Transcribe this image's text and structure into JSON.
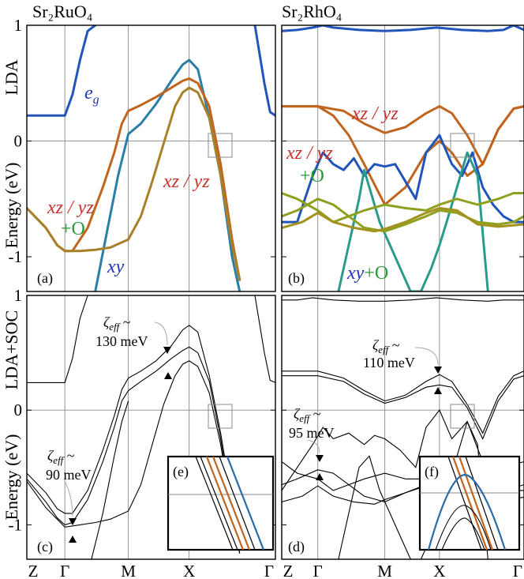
{
  "titles": {
    "left": "Sr₂RuO₄",
    "right": "Sr₂RhO₄"
  },
  "row_labels": {
    "top": "LDA",
    "bottom": "LDA+SOC"
  },
  "ylabel": "Energy (eV)",
  "panel_letters": [
    "(a)",
    "(b)",
    "(c)",
    "(d)",
    "(e)",
    "(f)"
  ],
  "ann": {
    "eg": "e",
    "eg_sub": "g",
    "xzyz": "xz / yz",
    "plusO": "+O",
    "xy": "xy",
    "xyO_xy": "xy",
    "xyO_O": "+O"
  },
  "zeta": {
    "ru_top_sym": "ζ",
    "ru_top_sub": "eff",
    "ru_top_tilde": " ~",
    "ru_top_val": "130 meV",
    "ru_bot_sym": "ζ",
    "ru_bot_sub": "eff",
    "ru_bot_tilde": " ~",
    "ru_bot_val": "90 meV",
    "rh_top_sym": "ζ",
    "rh_top_sub": "eff",
    "rh_top_tilde": " ~",
    "rh_top_val": "110 meV",
    "rh_bot_sym": "ζ",
    "rh_bot_sub": "eff",
    "rh_bot_tilde": " ~",
    "rh_bot_val": "95 meV"
  },
  "colors": {
    "eg": "#2255bb",
    "xy": "#2a7fa8",
    "xzyz": "#c0641e",
    "xzyzO": "#a39220",
    "xzO": "#8fa020",
    "xyO": "#2a9a8a",
    "red_label": "#c8322d",
    "green_label": "#2a9a3a",
    "blue_label": "#2233bb"
  },
  "chart_data": [
    {
      "type": "line",
      "panel": "(a)",
      "xtick_labels": [
        "Z",
        "Γ",
        "M",
        "X",
        "Γ"
      ],
      "x_ticks": [
        0,
        1,
        2.67,
        4.27,
        6.54
      ],
      "yticks": [
        1,
        0,
        -1
      ],
      "ylim": [
        -1.3,
        1.0
      ],
      "series": [
        {
          "key": "eg",
          "color": "#2255bb",
          "x": [
            0,
            0.5,
            1.0,
            1.2,
            1.4,
            1.6,
            1.8
          ],
          "y": [
            0.22,
            0.22,
            0.22,
            0.4,
            0.7,
            0.95,
            1.0
          ]
        },
        {
          "key": "eg2",
          "color": "#2255bb",
          "x": [
            6.0,
            6.25,
            6.4,
            6.54
          ],
          "y": [
            1.0,
            0.5,
            0.25,
            0.22
          ]
        },
        {
          "key": "xy",
          "color": "#2a7fa8",
          "x": [
            1.8,
            2.1,
            2.4,
            2.67,
            3.0,
            3.4,
            3.8,
            4.1,
            4.27,
            4.5,
            4.8,
            5.1,
            5.4,
            5.6
          ],
          "y": [
            -1.3,
            -0.8,
            -0.3,
            0.06,
            0.15,
            0.32,
            0.52,
            0.66,
            0.7,
            0.62,
            0.2,
            -0.3,
            -1.0,
            -1.3
          ]
        },
        {
          "key": "xzyz1",
          "color": "#c0641e",
          "x": [
            0,
            0.5,
            0.8,
            1.0,
            1.2,
            1.6,
            2.0,
            2.3,
            2.5,
            2.67,
            3.0,
            3.4,
            3.8,
            4.1,
            4.27,
            4.5,
            4.8,
            5.1,
            5.4,
            5.6
          ],
          "y": [
            -0.58,
            -0.75,
            -0.9,
            -0.95,
            -0.95,
            -0.75,
            -0.4,
            -0.1,
            0.15,
            0.26,
            0.31,
            0.38,
            0.46,
            0.52,
            0.54,
            0.5,
            0.3,
            -0.2,
            -0.85,
            -1.2
          ]
        },
        {
          "key": "xzyz2",
          "color": "#a88028",
          "x": [
            0,
            0.5,
            0.8,
            1.0,
            1.4,
            1.8,
            2.2,
            2.67,
            3.0,
            3.3,
            3.6,
            3.9,
            4.1,
            4.27,
            4.5,
            4.8,
            5.1,
            5.4,
            5.6
          ],
          "y": [
            -0.58,
            -0.75,
            -0.9,
            -0.95,
            -0.95,
            -0.94,
            -0.92,
            -0.85,
            -0.65,
            -0.35,
            -0.02,
            0.3,
            0.42,
            0.46,
            0.42,
            0.2,
            -0.3,
            -0.9,
            -1.2
          ]
        }
      ]
    },
    {
      "type": "line",
      "panel": "(b)",
      "xtick_labels": [
        "Z",
        "Γ",
        "M",
        "X",
        "Γ"
      ],
      "x_ticks": [
        0,
        0.7,
        2.0,
        3.06,
        4.7
      ],
      "yticks": [
        1,
        0,
        -1
      ],
      "ylim": [
        -1.3,
        1.0
      ],
      "series": [
        {
          "key": "eg_top",
          "color": "#2255bb",
          "x": [
            0,
            0.3,
            0.6,
            0.8,
            1.0,
            1.5,
            2.0,
            2.5,
            3.0,
            3.5,
            4.0,
            4.3,
            4.5,
            4.7
          ],
          "y": [
            0.95,
            0.96,
            0.98,
            1.0,
            0.98,
            0.96,
            0.95,
            0.96,
            0.98,
            0.96,
            0.95,
            0.96,
            1.0,
            0.96
          ]
        },
        {
          "key": "xzyz_top",
          "color": "#c0641e",
          "x": [
            0,
            0.7,
            1.2,
            1.6,
            2.0,
            2.4,
            2.8,
            3.06,
            3.3,
            3.6,
            3.9,
            4.2,
            4.5,
            4.7
          ],
          "y": [
            0.3,
            0.3,
            0.26,
            0.15,
            0.07,
            0.12,
            0.24,
            0.3,
            0.24,
            0.05,
            -0.2,
            0.1,
            0.28,
            0.3
          ]
        },
        {
          "key": "xzyz_low",
          "color": "#c0641e",
          "x": [
            0,
            0.7,
            1.0,
            1.3,
            1.6,
            2.0,
            2.4,
            2.8,
            3.06,
            3.3,
            3.6,
            3.9,
            4.2,
            4.5,
            4.7
          ],
          "y": [
            0.3,
            0.3,
            0.22,
            0.05,
            -0.2,
            -0.55,
            -0.4,
            -0.1,
            0.0,
            -0.1,
            -0.3,
            -0.2,
            0.1,
            0.28,
            0.3
          ]
        },
        {
          "key": "eg_band",
          "color": "#2255bb",
          "x": [
            0,
            0.3,
            0.6,
            0.8,
            1.0,
            1.2,
            1.4,
            1.6,
            1.8,
            2.0,
            2.2,
            2.4,
            2.6,
            2.8,
            3.06,
            3.3,
            3.5,
            3.7,
            3.9,
            4.1,
            4.3,
            4.5,
            4.7
          ],
          "y": [
            -0.7,
            -0.7,
            -0.3,
            -0.1,
            -0.2,
            -0.25,
            -0.15,
            -0.3,
            -0.2,
            -0.22,
            -0.2,
            -0.35,
            -0.5,
            -0.1,
            0.05,
            -0.2,
            -0.3,
            -0.1,
            -0.4,
            -0.55,
            -0.65,
            -0.7,
            -0.7
          ]
        },
        {
          "key": "xyO",
          "color": "#2a9a8a",
          "x": [
            1.1,
            1.3,
            1.5,
            1.6,
            1.7,
            1.9,
            2.1,
            2.3,
            2.5,
            2.7,
            2.9,
            3.06,
            3.2,
            3.4,
            3.6,
            3.8,
            4.0
          ],
          "y": [
            -1.3,
            -0.9,
            -0.5,
            -0.25,
            -0.4,
            -0.7,
            -0.9,
            -1.1,
            -1.3,
            -1.3,
            -1.1,
            -0.9,
            -0.7,
            -0.4,
            -0.1,
            -0.3,
            -1.3
          ]
        },
        {
          "key": "o1",
          "color": "#8fa020",
          "x": [
            0,
            0.3,
            0.7,
            1.0,
            1.3,
            1.6,
            2.0,
            2.4,
            2.8,
            3.06,
            3.4,
            3.8,
            4.2,
            4.5,
            4.7
          ],
          "y": [
            -0.45,
            -0.5,
            -0.6,
            -0.7,
            -0.65,
            -0.6,
            -0.55,
            -0.58,
            -0.6,
            -0.55,
            -0.5,
            -0.55,
            -0.5,
            -0.45,
            -0.45
          ]
        },
        {
          "key": "o2",
          "color": "#8fa020",
          "x": [
            0,
            0.3,
            0.7,
            1.0,
            1.3,
            1.6,
            2.0,
            2.4,
            2.8,
            3.06,
            3.4,
            3.8,
            4.2,
            4.5,
            4.7
          ],
          "y": [
            -0.65,
            -0.6,
            -0.5,
            -0.55,
            -0.65,
            -0.75,
            -0.78,
            -0.72,
            -0.65,
            -0.6,
            -0.62,
            -0.7,
            -0.72,
            -0.7,
            -0.65
          ]
        },
        {
          "key": "o3",
          "color": "#a39220",
          "x": [
            0,
            0.4,
            0.7,
            1.0,
            1.4,
            1.8,
            2.0,
            2.4,
            2.8,
            3.06,
            3.4,
            3.8,
            4.2,
            4.7
          ],
          "y": [
            -0.75,
            -0.7,
            -0.62,
            -0.7,
            -0.75,
            -0.78,
            -0.76,
            -0.7,
            -0.62,
            -0.58,
            -0.6,
            -0.72,
            -0.74,
            -0.72
          ]
        }
      ]
    },
    {
      "type": "line",
      "panel": "(c)",
      "xtick_labels": [
        "Z",
        "Γ",
        "M",
        "X",
        "Γ"
      ],
      "x_ticks": [
        0,
        1,
        2.67,
        4.27,
        6.54
      ],
      "yticks": [
        1,
        0,
        -1
      ],
      "ylim": [
        -1.3,
        1.0
      ],
      "series": [
        {
          "key": "c1",
          "x": [
            0,
            0.5,
            1.0,
            1.2,
            1.4,
            1.6
          ],
          "y": [
            0.24,
            0.24,
            0.24,
            0.45,
            0.8,
            1.0
          ]
        },
        {
          "key": "c2",
          "x": [
            6.0,
            6.25,
            6.4,
            6.54
          ],
          "y": [
            1.0,
            0.5,
            0.26,
            0.24
          ]
        },
        {
          "key": "c3",
          "x": [
            0,
            0.5,
            0.8,
            1.0,
            1.2,
            1.6,
            2.0,
            2.3,
            2.5,
            2.67,
            3.0,
            3.4,
            3.8,
            4.1,
            4.27,
            4.5,
            4.8,
            5.1,
            5.4,
            5.6
          ],
          "y": [
            -0.55,
            -0.72,
            -0.86,
            -0.9,
            -0.9,
            -0.7,
            -0.35,
            -0.05,
            0.18,
            0.28,
            0.34,
            0.43,
            0.56,
            0.7,
            0.74,
            0.68,
            0.3,
            -0.2,
            -0.8,
            -1.2
          ]
        },
        {
          "key": "c4",
          "x": [
            0,
            0.5,
            0.8,
            1.0,
            1.2,
            1.6,
            2.0,
            2.3,
            2.5,
            2.67,
            3.0,
            3.4,
            3.8,
            4.1,
            4.27,
            4.5,
            4.8,
            5.1,
            5.4,
            5.6
          ],
          "y": [
            -0.6,
            -0.8,
            -0.94,
            -1.0,
            -0.98,
            -0.78,
            -0.45,
            -0.15,
            0.08,
            0.17,
            0.25,
            0.34,
            0.45,
            0.52,
            0.55,
            0.5,
            0.25,
            -0.25,
            -0.85,
            -1.25
          ]
        },
        {
          "key": "c5",
          "x": [
            0,
            0.5,
            1.0,
            1.4,
            1.8,
            2.2,
            2.67,
            3.0,
            3.3,
            3.6,
            3.9,
            4.1,
            4.27,
            4.5,
            4.8,
            5.1,
            5.4,
            5.6
          ],
          "y": [
            -0.62,
            -0.85,
            -1.02,
            -1.0,
            -0.98,
            -0.95,
            -0.88,
            -0.65,
            -0.3,
            0.05,
            0.3,
            0.4,
            0.43,
            0.38,
            0.15,
            -0.3,
            -0.9,
            -1.25
          ]
        },
        {
          "key": "c6",
          "x": [
            1.7,
            2.0,
            2.3,
            2.5,
            2.67
          ],
          "y": [
            -1.3,
            -0.9,
            -0.4,
            -0.1,
            0.08
          ]
        }
      ]
    },
    {
      "type": "line",
      "panel": "(d)",
      "xtick_labels": [
        "Z",
        "Γ",
        "M",
        "X",
        "Γ"
      ],
      "x_ticks": [
        0,
        0.7,
        2.0,
        3.06,
        4.7
      ],
      "yticks": [
        1,
        0,
        -1
      ],
      "ylim": [
        -1.3,
        1.0
      ],
      "series": [
        {
          "key": "d1",
          "x": [
            0,
            0.7,
            1.2,
            1.6,
            2.0,
            2.4,
            2.8,
            3.06,
            3.3,
            3.6,
            3.9,
            4.2,
            4.5,
            4.7
          ],
          "y": [
            0.34,
            0.34,
            0.28,
            0.17,
            0.08,
            0.13,
            0.25,
            0.31,
            0.25,
            0.05,
            -0.2,
            0.12,
            0.3,
            0.34
          ]
        },
        {
          "key": "d2",
          "x": [
            0,
            0.7,
            1.2,
            1.6,
            2.0,
            2.4,
            2.8,
            3.06,
            3.3,
            3.6,
            3.9,
            4.2,
            4.5,
            4.7
          ],
          "y": [
            0.3,
            0.3,
            0.25,
            0.14,
            0.06,
            0.11,
            0.2,
            0.22,
            0.2,
            0.02,
            -0.25,
            0.08,
            0.27,
            0.3
          ]
        },
        {
          "key": "d3",
          "x": [
            0,
            0.3,
            0.6,
            1.0,
            1.5,
            2.0,
            2.5,
            3.0,
            3.5,
            4.0,
            4.3,
            4.7
          ],
          "y": [
            0.96,
            0.96,
            0.98,
            0.96,
            0.95,
            0.95,
            0.96,
            0.98,
            0.96,
            0.95,
            0.96,
            0.96
          ]
        },
        {
          "key": "d4",
          "x": [
            0,
            0.3,
            0.6,
            0.8,
            1.0,
            1.3,
            1.6,
            1.8,
            2.0,
            2.3,
            2.6,
            2.8,
            3.06,
            3.3,
            3.6,
            3.9,
            4.2,
            4.5,
            4.7
          ],
          "y": [
            -0.7,
            -0.5,
            -0.3,
            -0.15,
            -0.25,
            -0.2,
            -0.3,
            -0.22,
            -0.25,
            -0.35,
            -0.5,
            -0.15,
            0.0,
            -0.25,
            -0.1,
            -0.45,
            -0.6,
            -0.7,
            -0.7
          ]
        },
        {
          "key": "d5",
          "x": [
            0,
            0.3,
            0.7,
            1.0,
            1.3,
            1.6,
            2.0,
            2.4,
            2.8,
            3.06,
            3.4,
            3.8,
            4.2,
            4.7
          ],
          "y": [
            -0.45,
            -0.55,
            -0.6,
            -0.7,
            -0.65,
            -0.6,
            -0.55,
            -0.6,
            -0.6,
            -0.55,
            -0.5,
            -0.55,
            -0.5,
            -0.45
          ]
        },
        {
          "key": "d6",
          "x": [
            0,
            0.3,
            0.7,
            1.0,
            1.3,
            1.6,
            2.0,
            2.4,
            2.8,
            3.06,
            3.4,
            3.8,
            4.2,
            4.7
          ],
          "y": [
            -0.65,
            -0.6,
            -0.52,
            -0.55,
            -0.65,
            -0.75,
            -0.8,
            -0.72,
            -0.65,
            -0.6,
            -0.62,
            -0.7,
            -0.72,
            -0.65
          ]
        },
        {
          "key": "d7",
          "x": [
            1.1,
            1.3,
            1.5,
            1.7,
            1.9,
            2.1,
            2.3,
            2.5,
            2.7,
            2.9,
            3.06,
            3.2,
            3.4,
            3.6,
            3.8,
            4.0
          ],
          "y": [
            -1.3,
            -0.9,
            -0.5,
            -0.4,
            -0.7,
            -0.9,
            -1.1,
            -1.3,
            -1.3,
            -1.1,
            -0.9,
            -0.7,
            -0.4,
            -0.1,
            -0.3,
            -1.3
          ]
        },
        {
          "key": "d8",
          "x": [
            0,
            0.4,
            0.7,
            1.0,
            1.4,
            1.8,
            2.0,
            2.4,
            2.8,
            3.06,
            3.4,
            3.8,
            4.2,
            4.7
          ],
          "y": [
            -0.8,
            -0.75,
            -0.66,
            -0.75,
            -0.8,
            -0.82,
            -0.78,
            -0.72,
            -0.66,
            -0.62,
            -0.64,
            -0.76,
            -0.78,
            -0.76
          ]
        }
      ]
    }
  ]
}
